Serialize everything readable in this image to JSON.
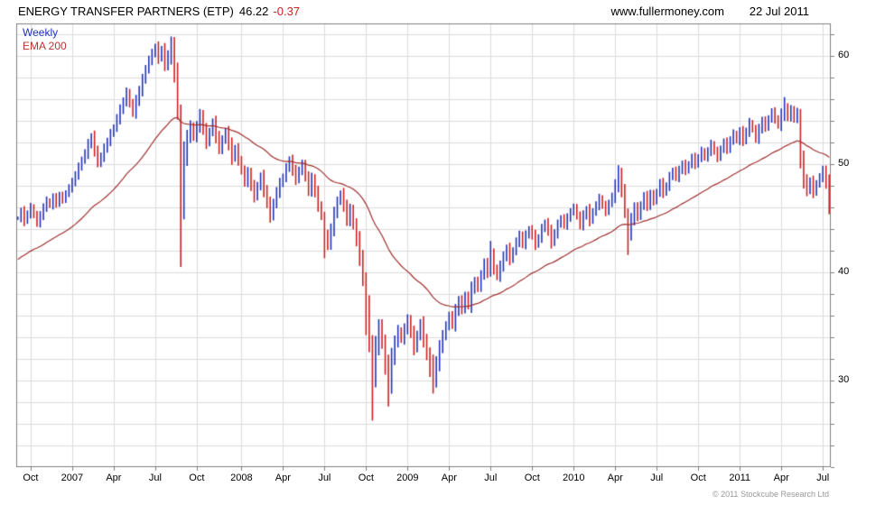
{
  "header": {
    "title": "ENERGY TRANSFER PARTNERS (ETP)",
    "last_price": "46.22",
    "change": "-0.37",
    "website": "www.fullermoney.com",
    "date": "22 Jul 2011"
  },
  "legend": {
    "timeframe": "Weekly",
    "ema_label": "EMA 200"
  },
  "footer": {
    "copyright": "© 2011 Stockcube Research Ltd"
  },
  "chart_data": {
    "type": "bar",
    "subtype": "weekly-hlc-bars",
    "title": "ENERGY TRANSFER PARTNERS (ETP) weekly price with 200-period EMA",
    "y_range": [
      22,
      63
    ],
    "grid_step": 2,
    "y_ticks": [
      30,
      40,
      50,
      60
    ],
    "x_ticks": [
      {
        "label": "Oct",
        "week": 4
      },
      {
        "label": "2007",
        "week": 17
      },
      {
        "label": "Apr",
        "week": 30
      },
      {
        "label": "Jul",
        "week": 43
      },
      {
        "label": "Oct",
        "week": 56
      },
      {
        "label": "2008",
        "week": 70
      },
      {
        "label": "Apr",
        "week": 83
      },
      {
        "label": "Jul",
        "week": 96
      },
      {
        "label": "Oct",
        "week": 109
      },
      {
        "label": "2009",
        "week": 122
      },
      {
        "label": "Apr",
        "week": 135
      },
      {
        "label": "Jul",
        "week": 148
      },
      {
        "label": "Oct",
        "week": 161
      },
      {
        "label": "2010",
        "week": 174
      },
      {
        "label": "Apr",
        "week": 187
      },
      {
        "label": "Jul",
        "week": 200
      },
      {
        "label": "Oct",
        "week": 213
      },
      {
        "label": "2011",
        "week": 226
      },
      {
        "label": "Apr",
        "week": 239
      },
      {
        "label": "Jul",
        "week": 252
      }
    ],
    "weekly_closes": [
      45.0,
      45.6,
      44.8,
      45.4,
      46.0,
      45.3,
      44.6,
      45.2,
      46.0,
      46.6,
      46.2,
      46.9,
      46.4,
      47.1,
      46.7,
      47.3,
      47.8,
      48.3,
      49.0,
      49.7,
      50.4,
      51.0,
      51.8,
      52.5,
      51.3,
      50.1,
      50.7,
      51.4,
      52.1,
      52.8,
      53.4,
      54.2,
      55.0,
      55.8,
      56.6,
      55.6,
      54.8,
      55.8,
      56.8,
      57.8,
      58.8,
      59.6,
      60.2,
      60.8,
      59.8,
      60.6,
      59.2,
      60.0,
      60.8,
      58.5,
      55.0,
      46.5,
      50.5,
      52.5,
      53.5,
      52.5,
      53.5,
      54.5,
      53.2,
      52.0,
      53.0,
      53.8,
      52.6,
      51.4,
      52.2,
      53.0,
      51.8,
      50.6,
      51.4,
      50.4,
      49.4,
      48.4,
      49.2,
      48.0,
      47.0,
      48.0,
      48.8,
      47.6,
      46.4,
      45.2,
      46.4,
      47.4,
      48.2,
      48.8,
      49.6,
      50.4,
      49.4,
      48.6,
      49.4,
      50.0,
      48.8,
      47.6,
      48.6,
      47.4,
      46.2,
      45.2,
      43.4,
      42.6,
      44.0,
      45.4,
      46.6,
      47.2,
      46.2,
      44.8,
      45.8,
      44.4,
      43.0,
      41.4,
      39.4,
      37.0,
      33.5,
      30.5,
      33.0,
      35.0,
      33.6,
      31.2,
      29.8,
      32.0,
      33.6,
      34.6,
      33.8,
      34.8,
      35.6,
      34.4,
      33.0,
      34.2,
      35.2,
      33.8,
      32.4,
      31.0,
      30.0,
      31.6,
      33.0,
      34.2,
      35.0,
      36.0,
      35.2,
      36.4,
      37.4,
      36.6,
      37.8,
      37.0,
      38.4,
      39.2,
      38.6,
      39.8,
      40.8,
      40.0,
      41.6,
      40.4,
      39.6,
      40.6,
      41.4,
      42.2,
      41.2,
      42.0,
      42.8,
      43.4,
      42.6,
      43.4,
      44.0,
      43.4,
      42.6,
      43.2,
      44.0,
      44.6,
      43.8,
      42.8,
      43.6,
      44.4,
      45.0,
      44.4,
      45.0,
      45.6,
      46.0,
      45.2,
      44.4,
      45.2,
      45.8,
      44.8,
      45.6,
      46.2,
      46.8,
      46.2,
      45.6,
      46.4,
      47.0,
      48.0,
      49.0,
      47.6,
      45.6,
      43.6,
      44.8,
      46.0,
      45.2,
      46.2,
      47.0,
      46.2,
      47.2,
      46.6,
      47.4,
      48.2,
      47.4,
      48.0,
      48.8,
      49.4,
      48.8,
      49.4,
      50.0,
      49.4,
      50.0,
      50.6,
      50.0,
      50.6,
      51.2,
      50.6,
      51.2,
      51.8,
      51.2,
      50.6,
      51.4,
      52.0,
      51.4,
      52.2,
      52.8,
      52.2,
      53.0,
      52.2,
      53.0,
      53.8,
      53.2,
      52.4,
      53.2,
      54.0,
      53.4,
      54.2,
      54.8,
      54.2,
      53.6,
      54.6,
      55.2,
      54.4,
      55.0,
      54.2,
      54.8,
      50.5,
      48.5,
      47.6,
      48.4,
      47.4,
      48.2,
      48.8,
      49.4,
      48.2,
      46.22
    ],
    "wick_overrides": {
      "48": [
        59.2,
        61.8
      ],
      "51": [
        40.5,
        55.5
      ],
      "96": [
        41.3,
        45.6
      ],
      "109": [
        34.2,
        40.0
      ],
      "111": [
        26.3,
        34.2
      ],
      "116": [
        27.6,
        32.4
      ],
      "130": [
        28.8,
        32.4
      ],
      "148": [
        39.6,
        42.9
      ],
      "188": [
        47.4,
        49.9
      ],
      "191": [
        41.6,
        45.9
      ],
      "240": [
        54.0,
        56.2
      ],
      "245": [
        49.6,
        55.1
      ]
    },
    "ema": {
      "label": "EMA 200",
      "period_weeks": 40,
      "start": 41.0
    },
    "colors": {
      "up": "#2233bb",
      "down": "#cc2222",
      "ema": "#a03030",
      "grid": "#dcdcdc",
      "border": "#808080",
      "change_negative": "#cc2222"
    }
  }
}
